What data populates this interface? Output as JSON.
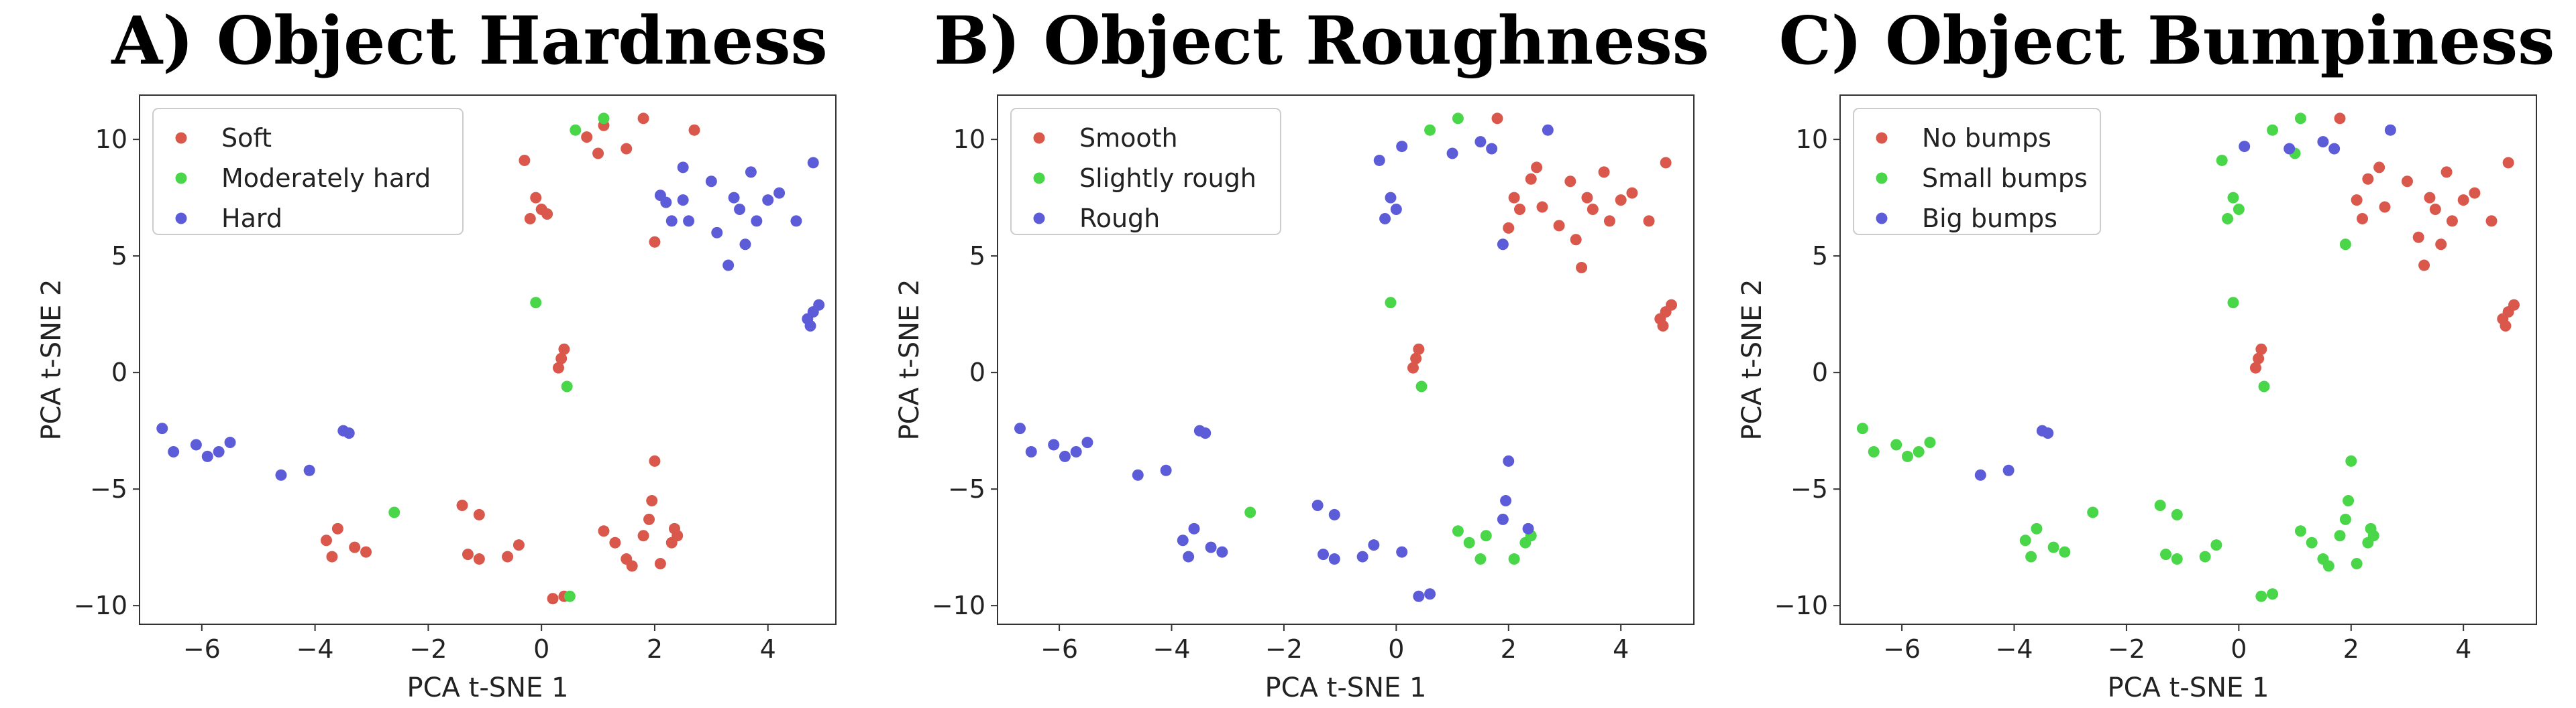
{
  "chart_data": [
    {
      "type": "scatter",
      "title": "A) Object Hardness",
      "xlabel": "PCA t-SNE 1",
      "ylabel": "PCA t-SNE 2",
      "xlim": [
        -7.1,
        5.2
      ],
      "ylim": [
        -10.8,
        11.9
      ],
      "xticks": [
        -6,
        -4,
        -2,
        0,
        2,
        4
      ],
      "yticks": [
        -10,
        -5,
        0,
        5,
        10
      ],
      "grid": false,
      "legend_position": "top-left",
      "series": [
        {
          "name": "Soft",
          "color": "#d9574b",
          "points": [
            [
              -0.3,
              9.1
            ],
            [
              -0.2,
              6.6
            ],
            [
              -0.1,
              7.5
            ],
            [
              0.0,
              7.0
            ],
            [
              0.1,
              6.8
            ],
            [
              0.8,
              10.1
            ],
            [
              1.0,
              9.4
            ],
            [
              1.1,
              10.6
            ],
            [
              1.5,
              9.6
            ],
            [
              1.8,
              10.9
            ],
            [
              2.0,
              5.6
            ],
            [
              2.7,
              10.4
            ],
            [
              0.4,
              1.0
            ],
            [
              0.35,
              0.6
            ],
            [
              0.3,
              0.2
            ],
            [
              0.4,
              -9.6
            ],
            [
              0.2,
              -9.7
            ],
            [
              -3.8,
              -7.2
            ],
            [
              -3.7,
              -7.9
            ],
            [
              -3.6,
              -6.7
            ],
            [
              -3.3,
              -7.5
            ],
            [
              -3.1,
              -7.7
            ],
            [
              -1.4,
              -5.7
            ],
            [
              -1.3,
              -7.8
            ],
            [
              -1.1,
              -6.1
            ],
            [
              -1.1,
              -8.0
            ],
            [
              -0.6,
              -7.9
            ],
            [
              -0.4,
              -7.4
            ],
            [
              1.1,
              -6.8
            ],
            [
              1.3,
              -7.3
            ],
            [
              1.5,
              -8.0
            ],
            [
              1.6,
              -8.3
            ],
            [
              1.8,
              -7.0
            ],
            [
              1.9,
              -6.3
            ],
            [
              1.95,
              -5.5
            ],
            [
              2.0,
              -3.8
            ],
            [
              2.1,
              -8.2
            ],
            [
              2.3,
              -7.3
            ],
            [
              2.35,
              -6.7
            ],
            [
              2.4,
              -7.0
            ]
          ]
        },
        {
          "name": "Moderately hard",
          "color": "#49d649",
          "points": [
            [
              0.6,
              10.4
            ],
            [
              1.1,
              10.9
            ],
            [
              -0.1,
              3.0
            ],
            [
              0.45,
              -0.6
            ],
            [
              -2.6,
              -6.0
            ],
            [
              0.5,
              -9.6
            ]
          ]
        },
        {
          "name": "Hard",
          "color": "#5d5cd8",
          "points": [
            [
              -6.7,
              -2.4
            ],
            [
              -6.5,
              -3.4
            ],
            [
              -6.1,
              -3.1
            ],
            [
              -5.9,
              -3.6
            ],
            [
              -5.7,
              -3.4
            ],
            [
              -5.5,
              -3.0
            ],
            [
              -4.6,
              -4.4
            ],
            [
              -4.1,
              -4.2
            ],
            [
              -3.5,
              -2.5
            ],
            [
              -3.4,
              -2.6
            ],
            [
              2.1,
              7.6
            ],
            [
              2.2,
              7.3
            ],
            [
              2.3,
              6.5
            ],
            [
              2.5,
              8.8
            ],
            [
              2.5,
              7.4
            ],
            [
              2.6,
              6.5
            ],
            [
              3.0,
              8.2
            ],
            [
              3.1,
              6.0
            ],
            [
              3.3,
              4.6
            ],
            [
              3.4,
              7.5
            ],
            [
              3.5,
              7.0
            ],
            [
              3.6,
              5.5
            ],
            [
              3.7,
              8.6
            ],
            [
              3.8,
              6.5
            ],
            [
              4.0,
              7.4
            ],
            [
              4.2,
              7.7
            ],
            [
              4.5,
              6.5
            ],
            [
              4.8,
              9.0
            ],
            [
              4.7,
              2.3
            ],
            [
              4.75,
              2.0
            ],
            [
              4.8,
              2.6
            ],
            [
              4.9,
              2.9
            ]
          ]
        }
      ]
    },
    {
      "type": "scatter",
      "title": "B) Object Roughness",
      "xlabel": "PCA t-SNE 1",
      "ylabel": "PCA t-SNE 2",
      "xlim": [
        -7.1,
        5.3
      ],
      "ylim": [
        -10.8,
        11.9
      ],
      "xticks": [
        -6,
        -4,
        -2,
        0,
        2,
        4
      ],
      "yticks": [
        -10,
        -5,
        0,
        5,
        10
      ],
      "grid": false,
      "legend_position": "top-left",
      "series": [
        {
          "name": "Smooth",
          "color": "#d9574b",
          "points": [
            [
              1.8,
              10.9
            ],
            [
              2.0,
              6.2
            ],
            [
              2.1,
              7.5
            ],
            [
              2.2,
              7.0
            ],
            [
              2.4,
              8.3
            ],
            [
              2.5,
              8.8
            ],
            [
              2.6,
              7.1
            ],
            [
              2.9,
              6.3
            ],
            [
              3.1,
              8.2
            ],
            [
              3.2,
              5.7
            ],
            [
              3.3,
              4.5
            ],
            [
              3.4,
              7.5
            ],
            [
              3.5,
              7.0
            ],
            [
              3.7,
              8.6
            ],
            [
              3.8,
              6.5
            ],
            [
              4.0,
              7.4
            ],
            [
              4.2,
              7.7
            ],
            [
              4.5,
              6.5
            ],
            [
              4.8,
              9.0
            ],
            [
              4.7,
              2.3
            ],
            [
              4.75,
              2.0
            ],
            [
              4.8,
              2.6
            ],
            [
              4.9,
              2.9
            ],
            [
              0.4,
              1.0
            ],
            [
              0.35,
              0.6
            ],
            [
              0.3,
              0.2
            ]
          ]
        },
        {
          "name": "Slightly rough",
          "color": "#49d649",
          "points": [
            [
              0.6,
              10.4
            ],
            [
              1.1,
              10.9
            ],
            [
              -0.1,
              3.0
            ],
            [
              0.45,
              -0.6
            ],
            [
              -2.6,
              -6.0
            ],
            [
              1.1,
              -6.8
            ],
            [
              1.3,
              -7.3
            ],
            [
              1.5,
              -8.0
            ],
            [
              1.6,
              -7.0
            ],
            [
              2.1,
              -8.0
            ],
            [
              2.3,
              -7.3
            ],
            [
              2.4,
              -7.0
            ]
          ]
        },
        {
          "name": "Rough",
          "color": "#5d5cd8",
          "points": [
            [
              -0.3,
              9.1
            ],
            [
              -0.2,
              6.6
            ],
            [
              -0.1,
              7.5
            ],
            [
              0.0,
              7.0
            ],
            [
              0.1,
              9.7
            ],
            [
              1.0,
              9.4
            ],
            [
              1.5,
              9.9
            ],
            [
              1.7,
              9.6
            ],
            [
              2.7,
              10.4
            ],
            [
              1.9,
              5.5
            ],
            [
              -6.7,
              -2.4
            ],
            [
              -6.5,
              -3.4
            ],
            [
              -6.1,
              -3.1
            ],
            [
              -5.9,
              -3.6
            ],
            [
              -5.7,
              -3.4
            ],
            [
              -5.5,
              -3.0
            ],
            [
              -4.6,
              -4.4
            ],
            [
              -4.1,
              -4.2
            ],
            [
              -3.5,
              -2.5
            ],
            [
              -3.4,
              -2.6
            ],
            [
              -3.8,
              -7.2
            ],
            [
              -3.7,
              -7.9
            ],
            [
              -3.6,
              -6.7
            ],
            [
              -3.3,
              -7.5
            ],
            [
              -3.1,
              -7.7
            ],
            [
              -1.4,
              -5.7
            ],
            [
              -1.3,
              -7.8
            ],
            [
              -1.1,
              -6.1
            ],
            [
              -1.1,
              -8.0
            ],
            [
              -0.6,
              -7.9
            ],
            [
              -0.4,
              -7.4
            ],
            [
              0.1,
              -7.7
            ],
            [
              0.4,
              -9.6
            ],
            [
              0.6,
              -9.5
            ],
            [
              1.9,
              -6.3
            ],
            [
              1.95,
              -5.5
            ],
            [
              2.0,
              -3.8
            ],
            [
              2.35,
              -6.7
            ]
          ]
        }
      ]
    },
    {
      "type": "scatter",
      "title": "C) Object Bumpiness",
      "xlabel": "PCA t-SNE 1",
      "ylabel": "PCA t-SNE 2",
      "xlim": [
        -7.1,
        5.3
      ],
      "ylim": [
        -10.8,
        11.9
      ],
      "xticks": [
        -6,
        -4,
        -2,
        0,
        2,
        4
      ],
      "yticks": [
        -10,
        -5,
        0,
        5,
        10
      ],
      "grid": false,
      "legend_position": "top-left",
      "series": [
        {
          "name": "No bumps",
          "color": "#d9574b",
          "points": [
            [
              1.8,
              10.9
            ],
            [
              2.1,
              7.4
            ],
            [
              2.2,
              6.6
            ],
            [
              2.3,
              8.3
            ],
            [
              2.5,
              8.8
            ],
            [
              2.6,
              7.1
            ],
            [
              3.0,
              8.2
            ],
            [
              3.2,
              5.8
            ],
            [
              3.3,
              4.6
            ],
            [
              3.4,
              7.5
            ],
            [
              3.5,
              7.0
            ],
            [
              3.6,
              5.5
            ],
            [
              3.7,
              8.6
            ],
            [
              3.8,
              6.5
            ],
            [
              4.0,
              7.4
            ],
            [
              4.2,
              7.7
            ],
            [
              4.5,
              6.5
            ],
            [
              4.8,
              9.0
            ],
            [
              4.7,
              2.3
            ],
            [
              4.75,
              2.0
            ],
            [
              4.8,
              2.6
            ],
            [
              4.9,
              2.9
            ],
            [
              0.4,
              1.0
            ],
            [
              0.35,
              0.6
            ],
            [
              0.3,
              0.2
            ]
          ]
        },
        {
          "name": "Small bumps",
          "color": "#49d649",
          "points": [
            [
              -0.3,
              9.1
            ],
            [
              -0.2,
              6.6
            ],
            [
              -0.1,
              7.5
            ],
            [
              0.0,
              7.0
            ],
            [
              0.6,
              10.4
            ],
            [
              1.1,
              10.9
            ],
            [
              1.0,
              9.4
            ],
            [
              1.9,
              5.5
            ],
            [
              -0.1,
              3.0
            ],
            [
              0.45,
              -0.6
            ],
            [
              -6.7,
              -2.4
            ],
            [
              -6.5,
              -3.4
            ],
            [
              -6.1,
              -3.1
            ],
            [
              -5.9,
              -3.6
            ],
            [
              -5.7,
              -3.4
            ],
            [
              -5.5,
              -3.0
            ],
            [
              -3.8,
              -7.2
            ],
            [
              -3.7,
              -7.9
            ],
            [
              -3.6,
              -6.7
            ],
            [
              -3.3,
              -7.5
            ],
            [
              -3.1,
              -7.7
            ],
            [
              -2.6,
              -6.0
            ],
            [
              -1.4,
              -5.7
            ],
            [
              -1.3,
              -7.8
            ],
            [
              -1.1,
              -6.1
            ],
            [
              -1.1,
              -8.0
            ],
            [
              -0.6,
              -7.9
            ],
            [
              -0.4,
              -7.4
            ],
            [
              1.1,
              -6.8
            ],
            [
              1.3,
              -7.3
            ],
            [
              1.5,
              -8.0
            ],
            [
              1.6,
              -8.3
            ],
            [
              1.8,
              -7.0
            ],
            [
              1.9,
              -6.3
            ],
            [
              1.95,
              -5.5
            ],
            [
              2.0,
              -3.8
            ],
            [
              2.1,
              -8.2
            ],
            [
              2.3,
              -7.3
            ],
            [
              2.35,
              -6.7
            ],
            [
              2.4,
              -7.0
            ],
            [
              0.4,
              -9.6
            ],
            [
              0.6,
              -9.5
            ]
          ]
        },
        {
          "name": "Big bumps",
          "color": "#5d5cd8",
          "points": [
            [
              0.1,
              9.7
            ],
            [
              0.9,
              9.6
            ],
            [
              1.5,
              9.9
            ],
            [
              1.7,
              9.6
            ],
            [
              2.7,
              10.4
            ],
            [
              -4.6,
              -4.4
            ],
            [
              -4.1,
              -4.2
            ],
            [
              -3.5,
              -2.5
            ],
            [
              -3.4,
              -2.6
            ]
          ]
        }
      ]
    }
  ]
}
